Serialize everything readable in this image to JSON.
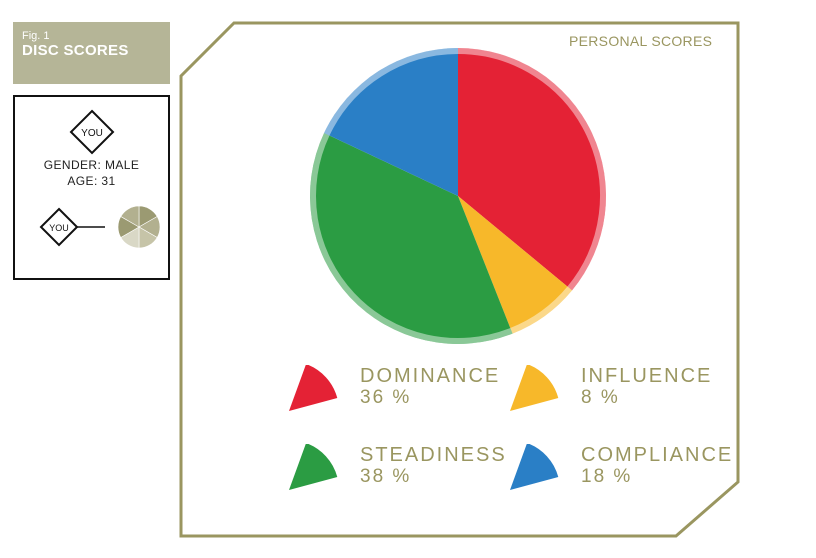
{
  "figure": {
    "number": "Fig. 1",
    "title": "DISC SCORES"
  },
  "profile": {
    "badge_label": "YOU",
    "gender_line": "GENDER: MALE",
    "age_line": "AGE: 31",
    "mini_badge_label": "YOU"
  },
  "chart_data": {
    "type": "pie",
    "title": "PERSONAL SCORES",
    "start_angle_deg": 270,
    "direction": "clockwise",
    "slices": [
      {
        "label": "DOMINANCE",
        "value": 36,
        "value_text": "36 %",
        "color": "#e42235"
      },
      {
        "label": "INFLUENCE",
        "value": 8,
        "value_text": "8 %",
        "color": "#f7b82a"
      },
      {
        "label": "STEADINESS",
        "value": 38,
        "value_text": "38 %",
        "color": "#2b9c43"
      },
      {
        "label": "COMPLIANCE",
        "value": 18,
        "value_text": "18 %",
        "color": "#2a7fc6"
      }
    ],
    "legend_placement": "bottom"
  },
  "theme": {
    "frame_color": "#9a9660",
    "fig_box_color": "#b5b597",
    "mini_pie_colors": [
      "#9b9a72",
      "#b2b08f",
      "#c6c4a8",
      "#d9d8c6"
    ]
  }
}
